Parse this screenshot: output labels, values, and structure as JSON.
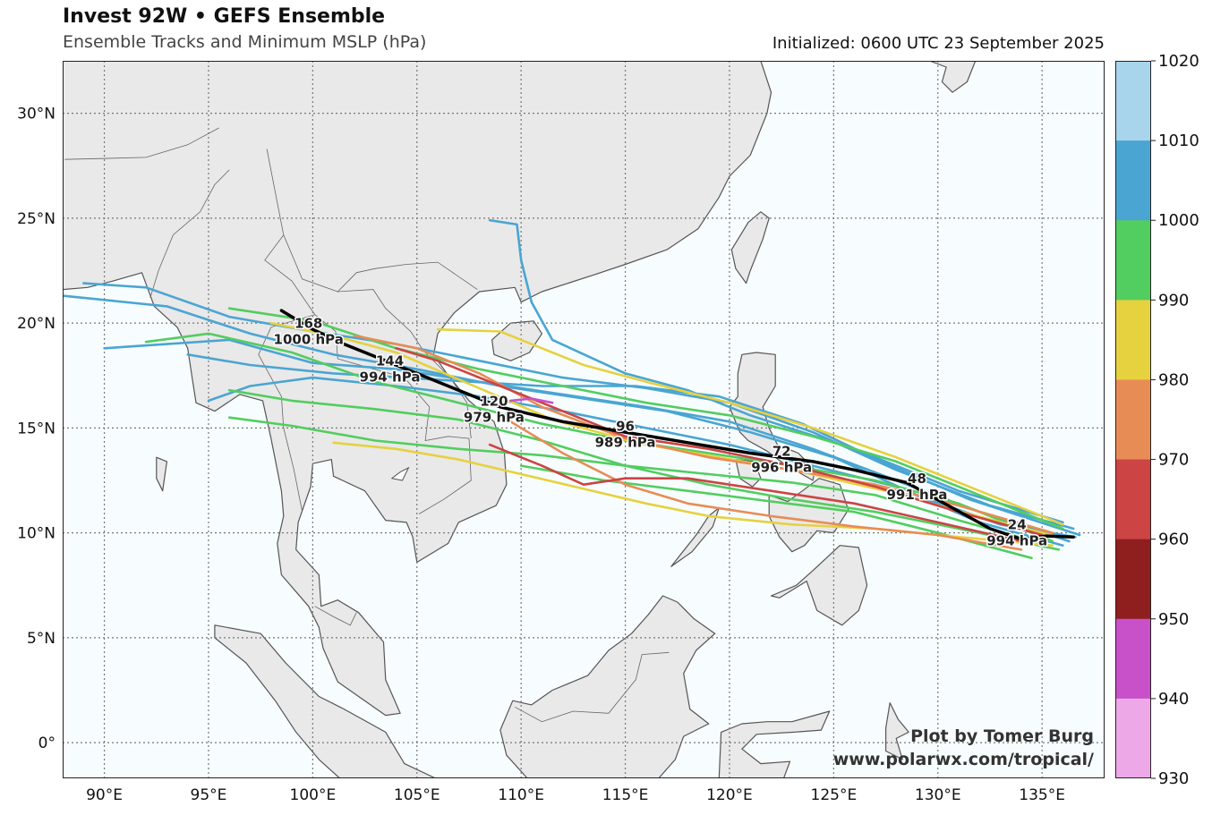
{
  "header": {
    "title": "Invest 92W • GEFS Ensemble",
    "subtitle": "Ensemble Tracks and Minimum MSLP (hPa)",
    "initialized": "Initialized: 0600 UTC 23 September 2025"
  },
  "credit": {
    "line1": "Plot by Tomer Burg",
    "line2": "www.polarwx.com/tropical/"
  },
  "map": {
    "extent": {
      "lon": [
        88,
        138
      ],
      "lat": [
        -1.7,
        32.5
      ]
    },
    "lon_ticks": [
      90,
      95,
      100,
      105,
      110,
      115,
      120,
      125,
      130,
      135
    ],
    "lon_labels": [
      "90°E",
      "95°E",
      "100°E",
      "105°E",
      "110°E",
      "115°E",
      "120°E",
      "125°E",
      "130°E",
      "135°E"
    ],
    "lat_ticks": [
      0,
      5,
      10,
      15,
      20,
      25,
      30
    ],
    "lat_labels": [
      "0°",
      "5°N",
      "10°N",
      "15°N",
      "20°N",
      "25°N",
      "30°N"
    ],
    "colors": {
      "ocean": "#f7fdfe",
      "land": "#e9e9e9",
      "coast": "#555555",
      "grid": "#777777"
    }
  },
  "colorbar": {
    "ticks": [
      "1020",
      "1010",
      "1000",
      "990",
      "980",
      "970",
      "960",
      "950",
      "940",
      "930"
    ],
    "bins": [
      {
        "low": 1010,
        "high": 1020,
        "color": "#a8d4ec"
      },
      {
        "low": 1000,
        "high": 1010,
        "color": "#4aa5d2"
      },
      {
        "low": 990,
        "high": 1000,
        "color": "#52cd5f"
      },
      {
        "low": 980,
        "high": 990,
        "color": "#e6d13f"
      },
      {
        "low": 970,
        "high": 980,
        "color": "#e88c56"
      },
      {
        "low": 960,
        "high": 970,
        "color": "#cc4444"
      },
      {
        "low": 950,
        "high": 960,
        "color": "#8f1f1f"
      },
      {
        "low": 940,
        "high": 950,
        "color": "#c850c8"
      },
      {
        "low": 930,
        "high": 940,
        "color": "#eda8e8"
      }
    ]
  },
  "mean_track": {
    "points": [
      [
        136.5,
        9.8
      ],
      [
        135.2,
        9.85
      ],
      [
        134.0,
        9.7
      ],
      [
        132.5,
        10.2
      ],
      [
        130.5,
        11.3
      ],
      [
        128.5,
        12.4
      ],
      [
        126.0,
        13.0
      ],
      [
        124.0,
        13.4
      ],
      [
        121.0,
        13.8
      ],
      [
        118.0,
        14.3
      ],
      [
        115.0,
        14.8
      ],
      [
        112.0,
        15.3
      ],
      [
        109.0,
        16.0
      ],
      [
        107.0,
        16.8
      ],
      [
        105.0,
        17.6
      ],
      [
        103.5,
        18.2
      ],
      [
        101.5,
        19.0
      ],
      [
        100.0,
        19.7
      ],
      [
        98.5,
        20.6
      ]
    ],
    "labels": [
      {
        "hour": "24",
        "mslp": "994 hPa",
        "lon": 133.8,
        "lat": 10.0
      },
      {
        "hour": "48",
        "mslp": "991 hPa",
        "lon": 129.0,
        "lat": 12.2
      },
      {
        "hour": "72",
        "mslp": "996 hPa",
        "lon": 122.5,
        "lat": 13.5
      },
      {
        "hour": "96",
        "mslp": "989 hPa",
        "lon": 115.0,
        "lat": 14.7
      },
      {
        "hour": "120",
        "mslp": "979 hPa",
        "lon": 108.7,
        "lat": 15.9
      },
      {
        "hour": "144",
        "mslp": "994 hPa",
        "lon": 103.7,
        "lat": 17.8
      },
      {
        "hour": "168",
        "mslp": "1000 hPa",
        "lon": 99.8,
        "lat": 19.6
      }
    ]
  },
  "ensemble_tracks": [
    {
      "color": "#4aa5d2",
      "points": [
        [
          136.6,
          9.8
        ],
        [
          133,
          10.4
        ],
        [
          129,
          11.8
        ],
        [
          125,
          13.6
        ],
        [
          121,
          14.8
        ],
        [
          117,
          15.8
        ],
        [
          113,
          16.4
        ],
        [
          109,
          17.0
        ],
        [
          105,
          17.8
        ],
        [
          101,
          18.5
        ],
        [
          97,
          19.5
        ],
        [
          93,
          20.8
        ],
        [
          88,
          21.3
        ]
      ]
    },
    {
      "color": "#4aa5d2",
      "points": [
        [
          136.5,
          10.2
        ],
        [
          132.5,
          11.3
        ],
        [
          128,
          13.0
        ],
        [
          124,
          14.8
        ],
        [
          120,
          16.2
        ],
        [
          116,
          16.9
        ],
        [
          112,
          17.4
        ],
        [
          108,
          18.2
        ],
        [
          104,
          19.0
        ],
        [
          100,
          19.6
        ],
        [
          96,
          20.3
        ],
        [
          92,
          21.7
        ],
        [
          89,
          21.9
        ]
      ]
    },
    {
      "color": "#4aa5d2",
      "points": [
        [
          136.3,
          9.6
        ],
        [
          132,
          11.0
        ],
        [
          128,
          12.5
        ],
        [
          124,
          14.0
        ],
        [
          120,
          15.3
        ],
        [
          116,
          16.0
        ],
        [
          112,
          16.6
        ],
        [
          108,
          17.2
        ],
        [
          104,
          17.8
        ],
        [
          100,
          18.1
        ],
        [
          96,
          19.2
        ],
        [
          93,
          19.0
        ],
        [
          90,
          18.8
        ]
      ]
    },
    {
      "color": "#4aa5d2",
      "points": [
        [
          136.8,
          9.9
        ],
        [
          131.5,
          11.6
        ],
        [
          127.5,
          13.3
        ],
        [
          123.5,
          15.2
        ],
        [
          119.5,
          16.5
        ],
        [
          115.5,
          17.0
        ],
        [
          111,
          17.0
        ],
        [
          106,
          17.3
        ],
        [
          101,
          17.6
        ],
        [
          97,
          18.0
        ],
        [
          94,
          18.5
        ]
      ]
    },
    {
      "color": "#4aa5d2",
      "points": [
        [
          136,
          10.5
        ],
        [
          131,
          12.0
        ],
        [
          126,
          14.0
        ],
        [
          121,
          15.6
        ],
        [
          118,
          16.8
        ],
        [
          115,
          17.6
        ],
        [
          111.5,
          19.2
        ],
        [
          110.5,
          21.0
        ],
        [
          110,
          23.0
        ],
        [
          109.8,
          24.7
        ],
        [
          108.5,
          24.9
        ]
      ]
    },
    {
      "color": "#4aa5d2",
      "points": [
        [
          136,
          9.4
        ],
        [
          132,
          10.5
        ],
        [
          128,
          12.2
        ],
        [
          124,
          13.2
        ],
        [
          120,
          14.2
        ],
        [
          116,
          15.0
        ],
        [
          112,
          15.8
        ],
        [
          108,
          16.5
        ],
        [
          104,
          17.0
        ],
        [
          100,
          17.4
        ],
        [
          97,
          17.0
        ],
        [
          95,
          16.3
        ]
      ]
    },
    {
      "color": "#52cd5f",
      "points": [
        [
          135.5,
          9.6
        ],
        [
          131,
          11.4
        ],
        [
          127,
          12.5
        ],
        [
          123,
          13.2
        ],
        [
          119,
          13.8
        ],
        [
          115,
          14.4
        ],
        [
          111,
          15.2
        ],
        [
          107,
          16.2
        ],
        [
          103,
          17.2
        ],
        [
          99,
          18.6
        ],
        [
          95,
          19.5
        ],
        [
          92,
          19.1
        ]
      ]
    },
    {
      "color": "#52cd5f",
      "points": [
        [
          135.8,
          9.2
        ],
        [
          131,
          10.2
        ],
        [
          127,
          11.0
        ],
        [
          123,
          11.6
        ],
        [
          119,
          12.3
        ],
        [
          115,
          13.2
        ],
        [
          111,
          14.4
        ],
        [
          107,
          15.4
        ],
        [
          103,
          15.9
        ],
        [
          99,
          16.3
        ],
        [
          96,
          16.8
        ]
      ]
    },
    {
      "color": "#52cd5f",
      "points": [
        [
          136,
          10.2
        ],
        [
          132,
          11.8
        ],
        [
          128,
          13.4
        ],
        [
          124,
          14.6
        ],
        [
          120,
          15.6
        ],
        [
          116,
          16.2
        ],
        [
          112,
          17.0
        ],
        [
          108,
          17.8
        ],
        [
          104,
          18.8
        ],
        [
          100,
          20.1
        ],
        [
          96,
          20.7
        ]
      ]
    },
    {
      "color": "#52cd5f",
      "points": [
        [
          135,
          9.5
        ],
        [
          131,
          10.6
        ],
        [
          127,
          11.8
        ],
        [
          123,
          12.4
        ],
        [
          119,
          12.8
        ],
        [
          115,
          13.2
        ],
        [
          111,
          13.7
        ],
        [
          107,
          14.0
        ],
        [
          103,
          14.4
        ],
        [
          99,
          15.1
        ],
        [
          96,
          15.5
        ]
      ]
    },
    {
      "color": "#52cd5f",
      "points": [
        [
          134.5,
          8.8
        ],
        [
          130,
          10.0
        ],
        [
          126,
          11.0
        ],
        [
          122,
          11.5
        ],
        [
          118,
          12.0
        ],
        [
          114,
          12.5
        ],
        [
          110,
          13.2
        ]
      ]
    },
    {
      "color": "#e6d13f",
      "points": [
        [
          135.8,
          9.8
        ],
        [
          131.5,
          10.9
        ],
        [
          127.5,
          12.0
        ],
        [
          123.5,
          12.9
        ],
        [
          119.5,
          13.6
        ],
        [
          115.5,
          14.3
        ],
        [
          111.5,
          15.4
        ],
        [
          107.5,
          17.1
        ],
        [
          104,
          18.6
        ],
        [
          101,
          19.4
        ],
        [
          98,
          20.0
        ]
      ]
    },
    {
      "color": "#e6d13f",
      "points": [
        [
          135.5,
          9.4
        ],
        [
          131,
          9.8
        ],
        [
          127,
          10.2
        ],
        [
          123,
          10.4
        ],
        [
          119,
          10.8
        ],
        [
          116,
          11.4
        ],
        [
          113,
          12.1
        ],
        [
          110,
          12.8
        ],
        [
          107,
          13.5
        ],
        [
          104,
          14.0
        ],
        [
          101,
          14.3
        ]
      ]
    },
    {
      "color": "#e6d13f",
      "points": [
        [
          136,
          10.4
        ],
        [
          132,
          12.0
        ],
        [
          128,
          13.6
        ],
        [
          124,
          15.0
        ],
        [
          120,
          16.2
        ],
        [
          116,
          17.2
        ],
        [
          113,
          18.0
        ],
        [
          111,
          18.8
        ],
        [
          109,
          19.6
        ],
        [
          106,
          19.7
        ]
      ]
    },
    {
      "color": "#e88c56",
      "points": [
        [
          135.5,
          10.0
        ],
        [
          131,
          11.3
        ],
        [
          127,
          12.3
        ],
        [
          123,
          13.0
        ],
        [
          119,
          13.6
        ],
        [
          115,
          14.5
        ],
        [
          111,
          16.0
        ],
        [
          108,
          17.6
        ],
        [
          105,
          18.8
        ],
        [
          102,
          19.4
        ]
      ]
    },
    {
      "color": "#e88c56",
      "points": [
        [
          134,
          9.2
        ],
        [
          130,
          9.9
        ],
        [
          126,
          10.3
        ],
        [
          122,
          10.8
        ],
        [
          118,
          11.4
        ],
        [
          115,
          12.3
        ],
        [
          112,
          13.8
        ],
        [
          109,
          15.6
        ]
      ]
    },
    {
      "color": "#cc4444",
      "points": [
        [
          135,
          9.9
        ],
        [
          131,
          11.0
        ],
        [
          127,
          12.2
        ],
        [
          123,
          13.2
        ],
        [
          119,
          14.0
        ],
        [
          115,
          14.6
        ],
        [
          112,
          15.8
        ],
        [
          109,
          17.0
        ],
        [
          106,
          18.2
        ],
        [
          104,
          18.8
        ]
      ]
    },
    {
      "color": "#cc4444",
      "points": [
        [
          134,
          9.6
        ],
        [
          130,
          10.5
        ],
        [
          126,
          11.4
        ],
        [
          122,
          12.0
        ],
        [
          118,
          12.6
        ],
        [
          115,
          12.6
        ],
        [
          113,
          12.3
        ],
        [
          111,
          13.2
        ],
        [
          108.5,
          14.2
        ]
      ]
    },
    {
      "color": "#c850c8",
      "points": [
        [
          111.5,
          16.2
        ],
        [
          110.5,
          16.4
        ],
        [
          109.5,
          16.3
        ]
      ]
    }
  ]
}
